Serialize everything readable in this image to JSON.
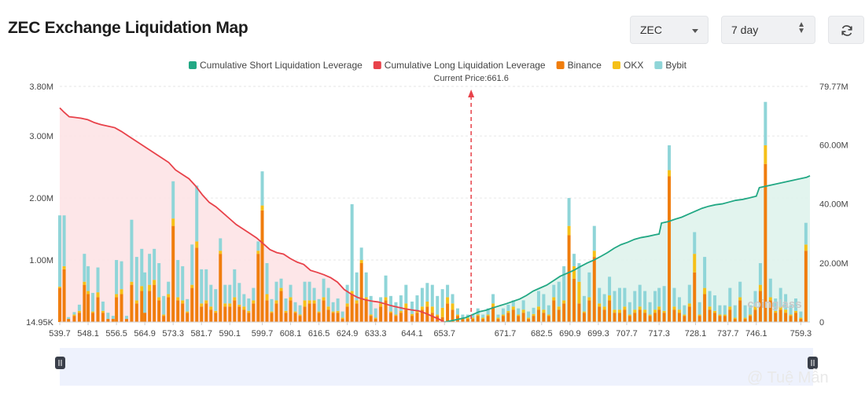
{
  "header": {
    "title": "ZEC Exchange Liquidation Map",
    "coin_select": "ZEC",
    "period_select": "7 day"
  },
  "icons": {
    "refresh": "refresh-icon",
    "dropdown": "chevron-down-icon",
    "stepper": "up-down-icon",
    "slider_handle": "pause-handle-icon"
  },
  "watermarks": {
    "coinglass": "coinglass",
    "author": "@ Tuệ Mẫn"
  },
  "colors": {
    "short": "#22a884",
    "long": "#e8424a",
    "binance": "#f07d0d",
    "okx": "#f5c018",
    "bybit": "#8fd5d8",
    "current_price_line": "#e8424a"
  },
  "chart_data": {
    "type": "bar",
    "current_price_label": "Current Price:661.6",
    "current_price": 661.6,
    "legend": [
      {
        "name": "Cumulative Short Liquidation Leverage",
        "color": "#22a884"
      },
      {
        "name": "Cumulative Long Liquidation Leverage",
        "color": "#e8424a"
      },
      {
        "name": "Binance",
        "color": "#f07d0d"
      },
      {
        "name": "OKX",
        "color": "#f5c018"
      },
      {
        "name": "Bybit",
        "color": "#8fd5d8"
      }
    ],
    "x_ticks": [
      "539.7",
      "548.1",
      "556.5",
      "564.9",
      "573.3",
      "581.7",
      "590.1",
      "599.7",
      "608.1",
      "616.5",
      "624.9",
      "633.3",
      "644.1",
      "653.7",
      "671.7",
      "682.5",
      "690.9",
      "699.3",
      "707.7",
      "717.3",
      "728.1",
      "737.7",
      "746.1",
      "759.3"
    ],
    "y_left_ticks": [
      "14.95K",
      "1.00M",
      "2.00M",
      "3.00M",
      "3.80M"
    ],
    "y_right_ticks": [
      "0",
      "20.00M",
      "40.00M",
      "60.00M",
      "79.77M"
    ],
    "y_left_range": [
      0,
      3.8
    ],
    "y_right_range": [
      0,
      79.77
    ],
    "x_range": [
      539.7,
      762
    ],
    "bars": {
      "x": [
        539.7,
        541,
        542.3,
        544,
        545.5,
        547,
        548.1,
        549.5,
        551,
        552.5,
        554,
        555.5,
        556.5,
        558,
        559.5,
        561,
        562.5,
        564,
        564.9,
        566.3,
        567.7,
        569.1,
        570.5,
        571.9,
        573.3,
        574.7,
        576.1,
        577.5,
        578.9,
        580.3,
        581.7,
        583.1,
        584.5,
        585.9,
        587.3,
        588.7,
        590.1,
        591.5,
        592.9,
        594.3,
        595.7,
        597.1,
        598.5,
        599.7,
        601.1,
        602.5,
        603.9,
        605.3,
        606.7,
        608.1,
        609.5,
        610.9,
        612.3,
        613.7,
        615.1,
        616.5,
        617.9,
        619.3,
        620.7,
        622.1,
        623.5,
        624.9,
        626.3,
        627.7,
        629.1,
        630.5,
        631.9,
        633.3,
        634.8,
        636.3,
        637.8,
        639.3,
        640.8,
        642.3,
        644.1,
        645.6,
        647.1,
        648.6,
        650.1,
        651.6,
        653.1,
        654.6,
        656.1,
        657.6,
        659.1,
        660.6,
        662.1,
        663.6,
        665.1,
        666.6,
        668.1,
        669.6,
        671.1,
        672.6,
        674.1,
        675.6,
        677.1,
        678.6,
        680.1,
        681.6,
        683.1,
        684.6,
        686.1,
        687.6,
        689.1,
        690.6,
        692.1,
        693.6,
        695.1,
        696.6,
        698.1,
        699.6,
        701.1,
        702.6,
        704.1,
        705.6,
        707.1,
        708.6,
        710.1,
        711.6,
        713.1,
        714.6,
        716.1,
        717.3,
        718.8,
        720.3,
        721.8,
        723.3,
        724.8,
        726.3,
        727.8,
        729.3,
        730.8,
        732.3,
        733.8,
        735.3,
        736.8,
        738.3,
        739.8,
        741.3,
        742.8,
        744.3,
        745.8,
        747.3,
        748.8,
        750.3,
        751.8,
        753.3,
        754.8,
        756.3,
        757.8,
        759.3,
        760.8
      ],
      "binance": [
        0.55,
        0.85,
        0.05,
        0.1,
        0.15,
        0.6,
        0.45,
        0.15,
        0.4,
        0.15,
        0.05,
        0.05,
        0.4,
        0.45,
        0.05,
        0.6,
        0.3,
        0.5,
        0.15,
        0.5,
        0.6,
        0.35,
        0.1,
        0.4,
        1.55,
        0.35,
        0.3,
        0.15,
        0.55,
        1.2,
        0.25,
        0.3,
        0.2,
        0.15,
        1.1,
        0.25,
        0.25,
        0.35,
        0.25,
        0.2,
        0.15,
        0.3,
        1.1,
        1.8,
        0.35,
        0.15,
        0.3,
        0.5,
        0.15,
        0.35,
        0.15,
        0.1,
        0.25,
        0.3,
        0.3,
        0.15,
        0.35,
        0.2,
        0.15,
        0.15,
        0.05,
        0.25,
        0.45,
        0.3,
        0.95,
        0.35,
        0.1,
        0.05,
        0.25,
        0.35,
        0.15,
        0.1,
        0.15,
        0.2,
        0.1,
        0.15,
        0.2,
        0.25,
        0.15,
        0.1,
        0.08,
        0.3,
        0.2,
        0.1,
        0.05,
        0.05,
        0.05,
        0.1,
        0.05,
        0.1,
        0.25,
        0.05,
        0.1,
        0.15,
        0.2,
        0.1,
        0.15,
        0.05,
        0.1,
        0.2,
        0.15,
        0.1,
        0.35,
        0.2,
        0.3,
        1.4,
        0.7,
        0.3,
        0.15,
        0.35,
        1.05,
        0.25,
        0.2,
        0.35,
        0.15,
        0.15,
        0.2,
        0.1,
        0.15,
        0.2,
        0.15,
        0.1,
        0.15,
        0.2,
        0.15,
        2.35,
        0.2,
        0.15,
        0.1,
        0.25,
        0.8,
        0.1,
        0.45,
        0.2,
        0.15,
        0.1,
        0.1,
        0.2,
        0.05,
        0.35,
        0.05,
        0.1,
        0.2,
        0.5,
        2.55,
        0.35,
        0.15,
        0.2,
        0.15,
        0.1,
        0.15,
        0.05,
        1.15,
        0.1
      ],
      "okx": [
        0.02,
        0.05,
        0.0,
        0.02,
        0.03,
        0.05,
        0.05,
        0.02,
        0.08,
        0.03,
        0.0,
        0.0,
        0.05,
        0.08,
        0.0,
        0.05,
        0.05,
        0.08,
        0.0,
        0.1,
        0.08,
        0.05,
        0.02,
        0.05,
        0.12,
        0.05,
        0.05,
        0.02,
        0.05,
        0.1,
        0.05,
        0.05,
        0.05,
        0.03,
        0.05,
        0.05,
        0.05,
        0.05,
        0.03,
        0.05,
        0.03,
        0.05,
        0.05,
        0.08,
        0.1,
        0.02,
        0.05,
        0.05,
        0.03,
        0.05,
        0.02,
        0.02,
        0.1,
        0.05,
        0.05,
        0.02,
        0.05,
        0.05,
        0.02,
        0.03,
        0.02,
        0.05,
        0.05,
        0.05,
        0.05,
        0.05,
        0.02,
        0.02,
        0.05,
        0.05,
        0.02,
        0.02,
        0.03,
        0.1,
        0.03,
        0.03,
        0.05,
        0.08,
        0.1,
        0.02,
        0.15,
        0.1,
        0.1,
        0.02,
        0.02,
        0.02,
        0.02,
        0.02,
        0.02,
        0.02,
        0.05,
        0.02,
        0.02,
        0.03,
        0.05,
        0.02,
        0.05,
        0.02,
        0.03,
        0.05,
        0.05,
        0.02,
        0.05,
        0.05,
        0.05,
        0.15,
        0.2,
        0.35,
        0.02,
        0.05,
        0.1,
        0.05,
        0.05,
        0.08,
        0.05,
        0.05,
        0.05,
        0.02,
        0.05,
        0.05,
        0.05,
        0.02,
        0.05,
        0.05,
        0.03,
        0.1,
        0.05,
        0.05,
        0.02,
        0.05,
        0.3,
        0.02,
        0.1,
        0.05,
        0.03,
        0.02,
        0.02,
        0.05,
        0.02,
        0.05,
        0.02,
        0.02,
        0.05,
        0.1,
        0.3,
        0.05,
        0.03,
        0.05,
        0.05,
        0.02,
        0.03,
        0.02,
        0.1,
        0.02
      ],
      "bybit": [
        1.15,
        0.82,
        0.03,
        0.04,
        0.1,
        0.45,
        0.4,
        0.3,
        0.4,
        0.15,
        0.1,
        0.05,
        0.55,
        0.45,
        0.05,
        1.0,
        0.7,
        0.6,
        0.65,
        0.5,
        0.5,
        0.55,
        0.3,
        0.2,
        0.6,
        0.6,
        0.55,
        0.2,
        0.65,
        0.9,
        0.55,
        0.5,
        0.35,
        0.35,
        0.2,
        0.3,
        0.3,
        0.45,
        0.35,
        0.2,
        0.2,
        0.2,
        0.15,
        0.55,
        0.5,
        0.2,
        0.3,
        0.15,
        0.2,
        0.2,
        0.15,
        0.15,
        0.3,
        0.3,
        0.2,
        0.2,
        0.3,
        0.3,
        0.15,
        0.2,
        0.1,
        0.3,
        1.4,
        0.45,
        0.2,
        0.4,
        0.3,
        0.15,
        0.1,
        0.35,
        0.25,
        0.2,
        0.25,
        0.3,
        0.2,
        0.25,
        0.3,
        0.3,
        0.35,
        0.3,
        0.3,
        0.2,
        0.15,
        0.1,
        0.05,
        0.05,
        0.05,
        0.1,
        0.05,
        0.1,
        0.15,
        0.05,
        0.1,
        0.1,
        0.1,
        0.1,
        0.15,
        0.1,
        0.1,
        0.25,
        0.25,
        0.15,
        0.2,
        0.4,
        0.55,
        0.45,
        0.2,
        0.3,
        0.25,
        0.4,
        0.4,
        0.25,
        0.2,
        0.3,
        0.3,
        0.35,
        0.3,
        0.2,
        0.3,
        0.35,
        0.3,
        0.2,
        0.3,
        0.3,
        0.4,
        0.4,
        0.3,
        0.2,
        0.15,
        0.3,
        0.35,
        0.2,
        0.5,
        0.25,
        0.25,
        0.15,
        0.15,
        0.3,
        0.2,
        0.25,
        0.2,
        0.15,
        0.25,
        0.35,
        0.7,
        0.3,
        0.2,
        0.3,
        0.25,
        0.15,
        0.2,
        0.1,
        0.35,
        0.25
      ]
    },
    "short_cumulative": {
      "x": [
        653.7,
        656,
        658,
        660,
        662,
        664,
        666,
        668,
        670,
        672,
        674,
        676,
        678,
        680,
        682,
        684,
        686,
        688,
        690,
        692,
        694,
        696,
        698,
        700,
        702,
        704,
        706,
        708,
        710,
        712,
        714,
        716,
        717.3,
        718,
        720,
        722,
        724,
        726,
        728,
        730,
        732,
        734,
        736,
        738,
        740,
        742,
        744,
        746.1,
        747,
        749,
        751,
        753,
        755,
        757,
        759,
        761,
        762
      ],
      "y": [
        0,
        0.5,
        1,
        1.5,
        2.5,
        3.5,
        4,
        4.8,
        5.5,
        6.2,
        7,
        7.8,
        9,
        10.5,
        11.5,
        12.5,
        14,
        15.5,
        16.5,
        17.5,
        18.8,
        20,
        21,
        22.2,
        23.5,
        25,
        26.2,
        27,
        28,
        28.6,
        29,
        29.5,
        29.8,
        33.5,
        34,
        34.8,
        35.5,
        36.5,
        37.5,
        38.5,
        39.2,
        39.7,
        40,
        40.6,
        41.2,
        41.5,
        42,
        42.6,
        45.5,
        46,
        46.5,
        47,
        47.5,
        48,
        48.5,
        49,
        49.5
      ]
    },
    "long_cumulative": {
      "x": [
        539.7,
        541,
        542.5,
        544,
        546,
        548,
        550,
        552,
        554,
        556,
        558,
        560,
        562,
        564,
        566,
        568,
        570,
        572,
        574,
        576,
        578,
        580,
        582,
        584,
        586,
        588,
        590,
        592,
        594,
        596,
        598,
        600,
        602,
        604,
        606,
        608,
        610,
        612,
        614,
        616,
        618,
        620,
        622,
        624,
        626,
        628,
        630,
        632,
        634,
        636,
        638,
        640,
        642,
        644,
        646,
        648,
        650,
        652,
        653.7
      ],
      "y": [
        72.5,
        71,
        69.5,
        69.3,
        69,
        68.5,
        67.5,
        66.8,
        66.3,
        65.8,
        64.5,
        63,
        61.5,
        60,
        58.5,
        57,
        55.5,
        54,
        51.5,
        50,
        48.5,
        46,
        43,
        40.5,
        39,
        37,
        35,
        33,
        31.5,
        30,
        28.5,
        26.5,
        24.5,
        23.5,
        23,
        21.5,
        20.3,
        19.5,
        17.5,
        16.8,
        16,
        15,
        13.5,
        11,
        9.5,
        8.3,
        7.6,
        7.1,
        6.8,
        6.2,
        5.5,
        5,
        4.5,
        4.1,
        3.8,
        3,
        2,
        1,
        0
      ]
    }
  }
}
